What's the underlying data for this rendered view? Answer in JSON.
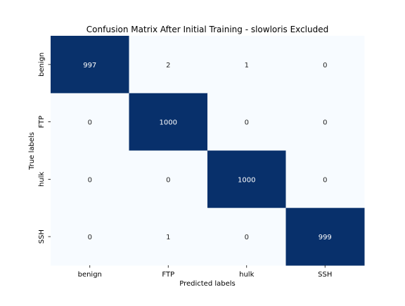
{
  "chart_data": {
    "type": "heatmap",
    "title": "Confusion Matrix After Initial Training - slowloris Excluded",
    "xlabel": "Predicted labels",
    "ylabel": "True labels",
    "x_categories": [
      "benign",
      "FTP",
      "hulk",
      "SSH"
    ],
    "y_categories": [
      "benign",
      "FTP",
      "hulk",
      "SSH"
    ],
    "matrix": [
      [
        997,
        2,
        1,
        0
      ],
      [
        0,
        1000,
        0,
        0
      ],
      [
        0,
        0,
        1000,
        0
      ],
      [
        0,
        1,
        0,
        999
      ]
    ],
    "value_range": [
      0,
      1000
    ],
    "colormap": "Blues",
    "colorbar": false,
    "colors": {
      "low": "#f7fbff",
      "high": "#08306b",
      "text_on_low": "#262626",
      "text_on_high": "#ffffff"
    }
  }
}
